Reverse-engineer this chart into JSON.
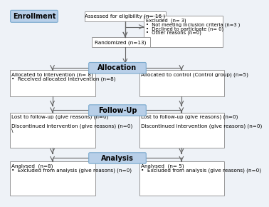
{
  "background_color": "#eef2f7",
  "blue_box_color": "#b8cfe8",
  "blue_box_edge": "#7aaace",
  "white_box_color": "#ffffff",
  "white_box_edge": "#999999",
  "enrollment_label": "Enrollment",
  "allocation_label": "Allocation",
  "followup_label": "Follow-Up",
  "analysis_label": "Analysis",
  "assessed_text": "Assessed for eligibility (n= 16 )",
  "excluded_title": "Excluded  (n= 3)",
  "excluded_lines": [
    "•  Not meeting inclusion criteria (n=3 )",
    "•  Declined to participate (n= 0)",
    "•  Other reasons (n=0)"
  ],
  "randomized_text": "Randomized (n=13)",
  "alloc_left_lines": [
    "Allocated to intervention (n= 8)",
    "•  Received allocated intervention (n=8)"
  ],
  "alloc_right_lines": [
    "Allocated to control (Control group) (n=5)"
  ],
  "followup_left_lines": [
    "Lost to follow-up (give reasons) (n=0)",
    "",
    "Discontinued intervention (give reasons) (n=0)",
    "\\"
  ],
  "followup_right_lines": [
    "Lost to follow-up (give reasons) (n=0)",
    "",
    "Discontinued intervention (give reasons) (n=0)"
  ],
  "analysis_left_lines": [
    "Analysed  (n=8)",
    "•  Excluded from analysis (give reasons) (n=0)"
  ],
  "analysis_right_lines": [
    "Analysed  (n= 5)",
    "•  Excluded from analysis (give reasons) (n=0)"
  ],
  "font_size": 5.2,
  "label_font_size": 7.0,
  "arrow_color": "#666666",
  "line_color": "#666666"
}
